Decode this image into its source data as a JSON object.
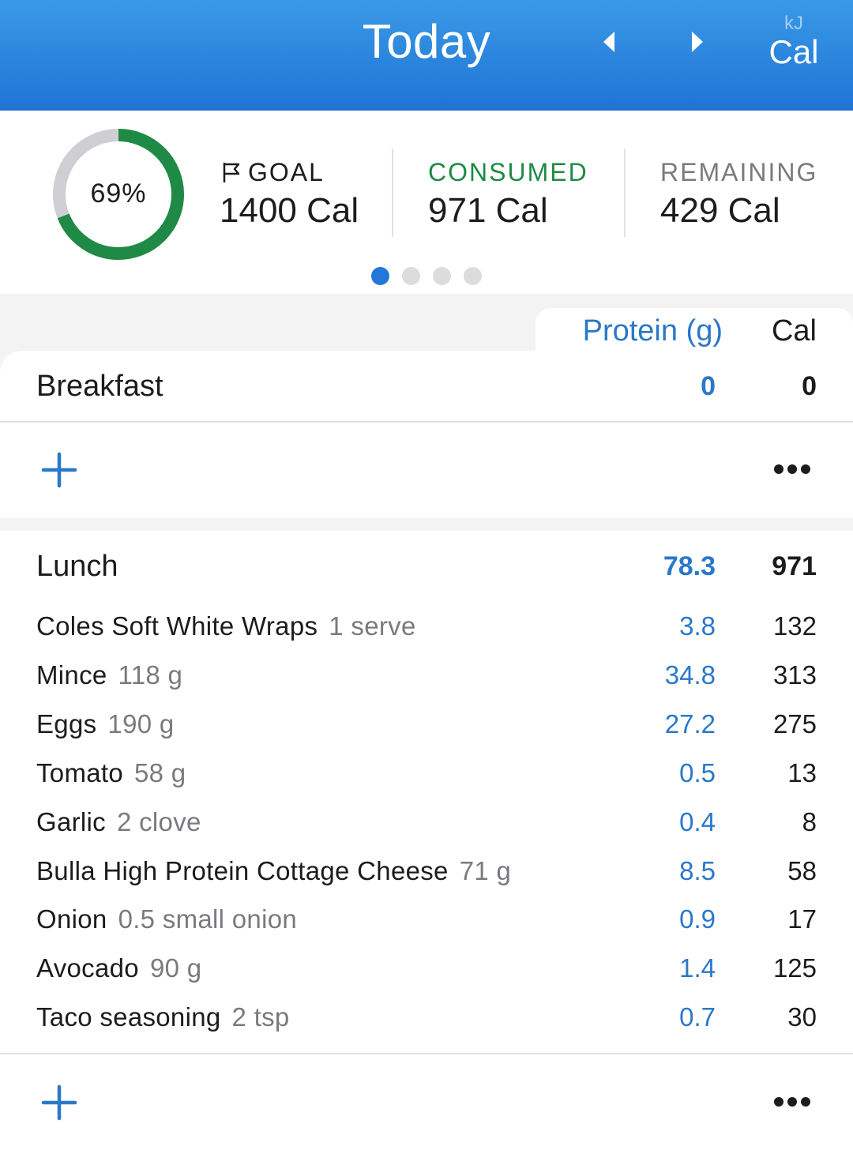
{
  "header": {
    "title": "Today",
    "unit_alt": "kJ",
    "unit_active": "Cal",
    "accent_color": "#2a82dd"
  },
  "summary": {
    "progress_percent_label": "69%",
    "progress_fraction": 0.69,
    "goal": {
      "label": "GOAL",
      "value": "1400 Cal"
    },
    "consumed": {
      "label": "CONSUMED",
      "value": "971 Cal",
      "color": "#1e8a45"
    },
    "remaining": {
      "label": "REMAINING",
      "value": "429 Cal"
    },
    "page_count": 4,
    "active_page": 1
  },
  "columns": {
    "protein": "Protein (g)",
    "cal": "Cal"
  },
  "breakfast": {
    "name": "Breakfast",
    "protein": "0",
    "cal": "0"
  },
  "lunch": {
    "name": "Lunch",
    "protein": "78.3",
    "cal": "971",
    "items": [
      {
        "name": "Coles Soft White Wraps",
        "qty": "1 serve",
        "protein": "3.8",
        "cal": "132"
      },
      {
        "name": "Mince",
        "qty": "118 g",
        "protein": "34.8",
        "cal": "313"
      },
      {
        "name": "Eggs",
        "qty": "190 g",
        "protein": "27.2",
        "cal": "275"
      },
      {
        "name": "Tomato",
        "qty": "58 g",
        "protein": "0.5",
        "cal": "13"
      },
      {
        "name": "Garlic",
        "qty": "2 clove",
        "protein": "0.4",
        "cal": "8"
      },
      {
        "name": "Bulla High Protein Cottage Cheese",
        "qty": "71 g",
        "protein": "8.5",
        "cal": "58"
      },
      {
        "name": "Onion",
        "qty": "0.5 small onion",
        "protein": "0.9",
        "cal": "17"
      },
      {
        "name": "Avocado",
        "qty": "90 g",
        "protein": "1.4",
        "cal": "125"
      },
      {
        "name": "Taco seasoning",
        "qty": "2 tsp",
        "protein": "0.7",
        "cal": "30"
      }
    ]
  },
  "icons": {
    "prev": "chevron-left-icon",
    "next": "chevron-right-icon",
    "add": "plus-icon",
    "more": "more-horizontal-icon",
    "goal": "flag-icon"
  }
}
